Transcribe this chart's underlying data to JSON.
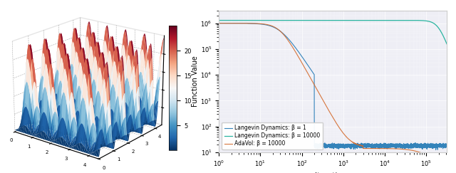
{
  "fig_width": 6.4,
  "fig_height": 2.43,
  "dpi": 100,
  "line_colors": {
    "ld_beta1": "#1f77b4",
    "ld_beta10000": "#2ab5a0",
    "adavol": "#d4692a"
  },
  "legend_labels": [
    "Langevin Dynamics: β = 1",
    "Langevin Dynamics: β = 10000",
    "AdaVol: β = 10000"
  ],
  "xlabel": "Iterations",
  "ylabel": "Function Value",
  "bg_color": "#eeeef5"
}
